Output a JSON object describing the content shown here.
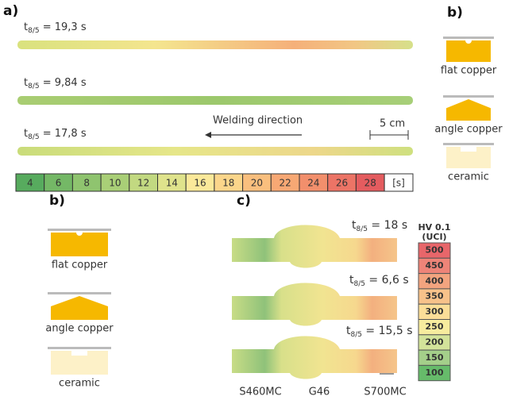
{
  "panel_a": {
    "label": "a)",
    "samples": [
      {
        "t": "t",
        "sub": "8/5",
        "value": " = 19,3 s"
      },
      {
        "t": "t",
        "sub": "8/5",
        "value": " = 9,84 s"
      },
      {
        "t": "t",
        "sub": "8/5",
        "value": " = 17,8 s"
      }
    ],
    "direction": "Welding direction",
    "scale": "5 cm",
    "color_scale": {
      "values": [
        4,
        6,
        8,
        10,
        12,
        14,
        16,
        18,
        20,
        22,
        24,
        26,
        28
      ],
      "unit": "[s]"
    }
  },
  "panel_b_right": {
    "label": "b)",
    "items": [
      "flat copper",
      "angle copper",
      "ceramic"
    ]
  },
  "panel_b_left": {
    "label": "b)",
    "items": [
      "flat copper",
      "angle copper",
      "ceramic"
    ]
  },
  "panel_c": {
    "label": "c)",
    "samples": [
      {
        "t": "t",
        "sub": "8/5",
        "value": " = 18 s"
      },
      {
        "t": "t",
        "sub": "8/5",
        "value": " = 6,6 s"
      },
      {
        "t": "t",
        "sub": "8/5",
        "value": " = 15,5 s"
      }
    ],
    "hardness": {
      "title": "HV 0.1",
      "subtitle": "(UCI)",
      "values": [
        500,
        450,
        400,
        350,
        300,
        250,
        200,
        150,
        100
      ]
    },
    "materials": [
      "S460MC",
      "G46",
      "S700MC"
    ]
  }
}
